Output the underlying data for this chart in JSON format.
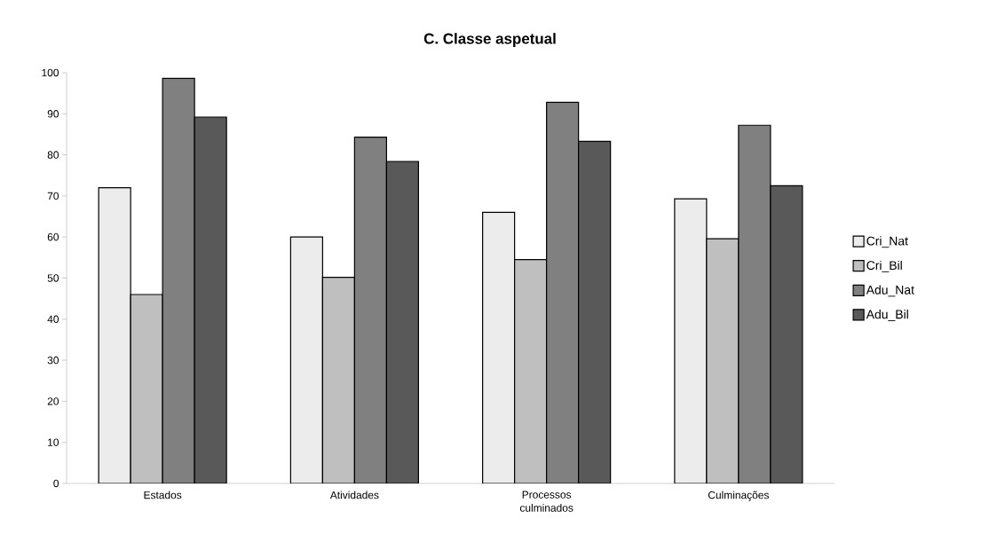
{
  "chart_data": {
    "type": "bar",
    "title": "C. Classe aspetual",
    "categories": [
      "Estados",
      "Atividades",
      "Processos culminados",
      "Culminações"
    ],
    "series": [
      {
        "name": "Cri_Nat",
        "color": "#ececec",
        "values": [
          72,
          60,
          66,
          69.3
        ]
      },
      {
        "name": "Cri_Bil",
        "color": "#bfbfbf",
        "values": [
          46,
          50.2,
          54.5,
          59.6
        ]
      },
      {
        "name": "Adu_Nat",
        "color": "#808080",
        "values": [
          98.6,
          84.3,
          92.8,
          87.2
        ]
      },
      {
        "name": "Adu_Bil",
        "color": "#595959",
        "values": [
          89.2,
          78.4,
          83.3,
          72.5
        ]
      }
    ],
    "ylim": [
      0,
      100
    ],
    "yticks": [
      0,
      10,
      20,
      30,
      40,
      50,
      60,
      70,
      80,
      90,
      100
    ],
    "grid": false,
    "legend": "right"
  }
}
